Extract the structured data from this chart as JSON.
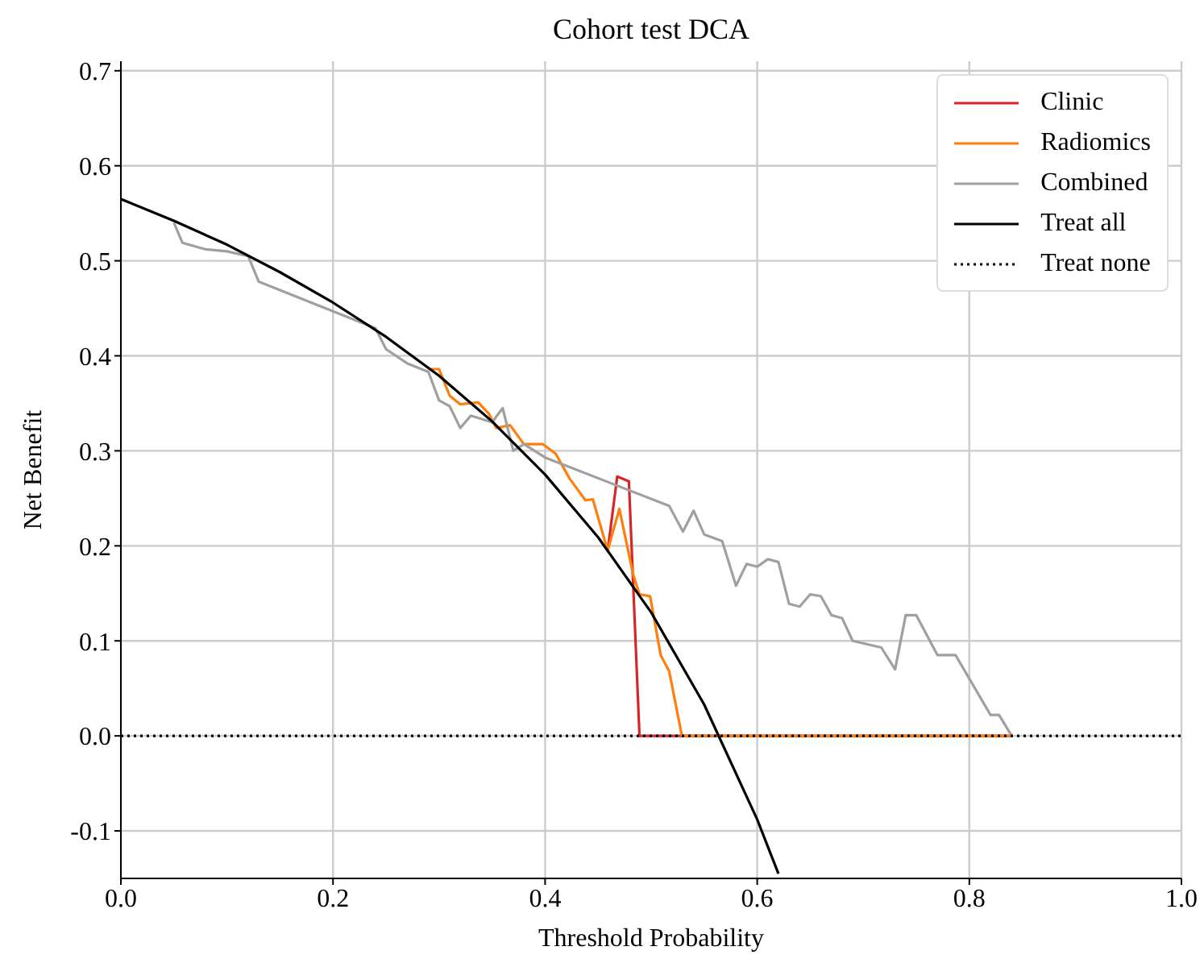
{
  "chart_data": {
    "type": "line",
    "title": "Cohort test DCA",
    "xlabel": "Threshold Probability",
    "ylabel": "Net Benefit",
    "xlim": [
      0,
      1
    ],
    "xticks": [
      {
        "value": 0,
        "label": "0.0"
      },
      0.2,
      0.4,
      0.6,
      0.8,
      {
        "value": 1,
        "label": "1.0"
      }
    ],
    "ylim": [
      -0.15,
      0.71
    ],
    "yticks": [
      -0.1,
      {
        "value": 0,
        "label": "0.0"
      },
      0.1,
      0.2,
      0.3,
      0.4,
      0.5,
      0.6,
      0.7
    ],
    "grid": true,
    "legend": "top right",
    "marker": "none",
    "series": [
      {
        "name": "Clinic",
        "color": "#d62728",
        "line_style": "solid",
        "x": [
          0.459,
          0.468,
          0.479,
          0.489,
          0.84
        ],
        "values": [
          0.195,
          0.273,
          0.268,
          0.0,
          0.0
        ]
      },
      {
        "name": "Radiomics",
        "color": "#ff7f0e",
        "line_style": "solid",
        "x": [
          0.29,
          0.3,
          0.31,
          0.32,
          0.337,
          0.347,
          0.354,
          0.367,
          0.38,
          0.398,
          0.41,
          0.423,
          0.438,
          0.445,
          0.459,
          0.47,
          0.483,
          0.489,
          0.499,
          0.509,
          0.517,
          0.529,
          0.84
        ],
        "values": [
          0.386,
          0.386,
          0.358,
          0.349,
          0.351,
          0.339,
          0.324,
          0.327,
          0.307,
          0.307,
          0.297,
          0.271,
          0.248,
          0.249,
          0.195,
          0.239,
          0.17,
          0.149,
          0.147,
          0.085,
          0.068,
          0.0,
          0.0
        ]
      },
      {
        "name": "Combined",
        "color": "#a0a0a0",
        "line_style": "solid",
        "x": [
          0.05,
          0.058,
          0.08,
          0.1,
          0.12,
          0.13,
          0.24,
          0.25,
          0.27,
          0.29,
          0.3,
          0.31,
          0.32,
          0.33,
          0.35,
          0.36,
          0.37,
          0.38,
          0.39,
          0.4,
          0.517,
          0.53,
          0.54,
          0.55,
          0.567,
          0.58,
          0.59,
          0.6,
          0.61,
          0.62,
          0.63,
          0.64,
          0.65,
          0.66,
          0.67,
          0.68,
          0.69,
          0.717,
          0.73,
          0.74,
          0.75,
          0.77,
          0.787,
          0.82,
          0.828,
          0.84
        ],
        "values": [
          0.54,
          0.519,
          0.512,
          0.51,
          0.505,
          0.478,
          0.429,
          0.407,
          0.392,
          0.383,
          0.353,
          0.347,
          0.324,
          0.337,
          0.33,
          0.345,
          0.3,
          0.307,
          0.3,
          0.293,
          0.242,
          0.215,
          0.237,
          0.212,
          0.205,
          0.158,
          0.181,
          0.178,
          0.186,
          0.183,
          0.139,
          0.136,
          0.149,
          0.147,
          0.127,
          0.124,
          0.1,
          0.093,
          0.07,
          0.127,
          0.127,
          0.085,
          0.085,
          0.022,
          0.022,
          0.0
        ]
      },
      {
        "name": "Treat all",
        "color": "#000000",
        "line_style": "solid",
        "x": [
          0,
          0.05,
          0.1,
          0.15,
          0.2,
          0.25,
          0.3,
          0.35,
          0.4,
          0.45,
          0.5,
          0.55,
          0.6,
          0.62
        ],
        "values": [
          0.565,
          0.542,
          0.517,
          0.488,
          0.456,
          0.42,
          0.379,
          0.331,
          0.275,
          0.209,
          0.13,
          0.033,
          -0.088,
          -0.145
        ]
      },
      {
        "name": "Treat none",
        "color": "#000000",
        "line_style": "dotted",
        "x": [
          0,
          1
        ],
        "values": [
          0,
          0
        ]
      }
    ]
  }
}
